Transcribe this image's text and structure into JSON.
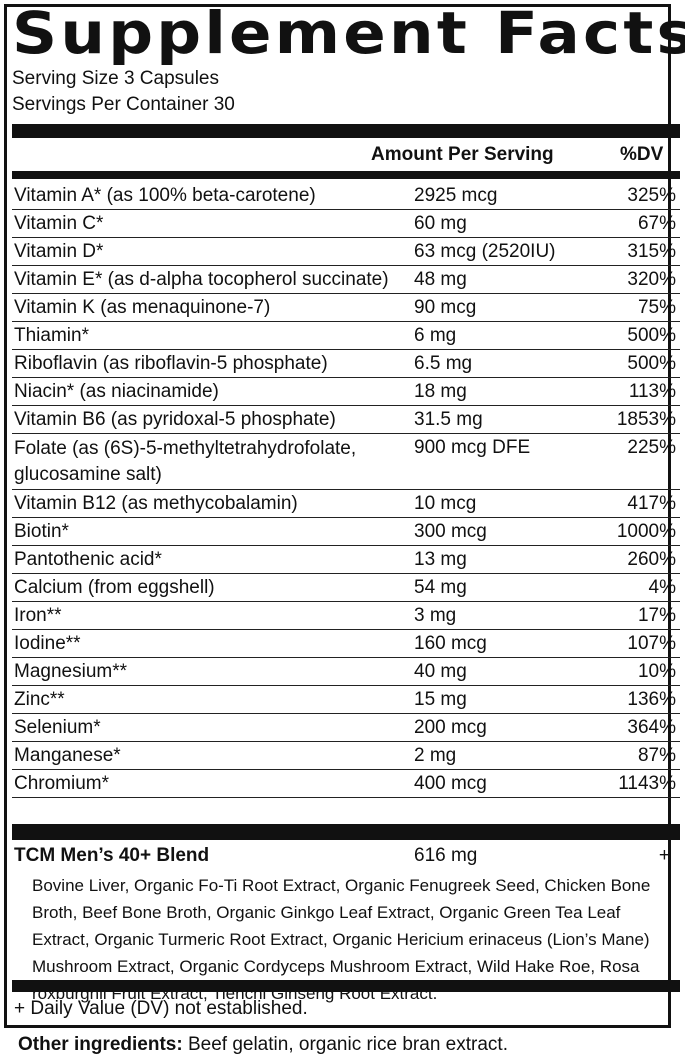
{
  "title": "Supplement Facts",
  "serving_size": "Serving Size 3 Capsules",
  "servings_per_container": "Servings Per Container 30",
  "header": {
    "amount": "Amount Per Serving",
    "dv": "%DV"
  },
  "nutrients": [
    {
      "name": "Vitamin A* (as 100% beta-carotene)",
      "amount": "2925 mcg",
      "dv": "325%"
    },
    {
      "name": "Vitamin C*",
      "amount": "60 mg",
      "dv": "67%"
    },
    {
      "name": "Vitamin D*",
      "amount": "63 mcg (2520IU)",
      "dv": "315%"
    },
    {
      "name": "Vitamin E* (as d-alpha tocopherol succinate)",
      "amount": "48 mg",
      "dv": "320%"
    },
    {
      "name": "Vitamin K (as menaquinone-7)",
      "amount": "90 mcg",
      "dv": "75%"
    },
    {
      "name": "Thiamin*",
      "amount": "6 mg",
      "dv": "500%"
    },
    {
      "name": "Riboflavin (as riboflavin-5 phosphate)",
      "amount": "6.5 mg",
      "dv": "500%"
    },
    {
      "name": "Niacin* (as niacinamide)",
      "amount": "18 mg",
      "dv": "113%"
    },
    {
      "name": "Vitamin B6 (as pyridoxal-5 phosphate)",
      "amount": "31.5 mg",
      "dv": "1853%"
    },
    {
      "name": "Folate (as (6S)-5-methyltetrahydrofolate, glucosamine salt)",
      "amount": "900 mcg DFE",
      "dv": "225%"
    },
    {
      "name": "Vitamin B12 (as methycobalamin)",
      "amount": "10 mcg",
      "dv": "417%"
    },
    {
      "name": "Biotin*",
      "amount": "300 mcg",
      "dv": "1000%"
    },
    {
      "name": "Pantothenic acid*",
      "amount": "13 mg",
      "dv": "260%"
    },
    {
      "name": "Calcium (from eggshell)",
      "amount": "54 mg",
      "dv": "4%"
    },
    {
      "name": "Iron**",
      "amount": "3 mg",
      "dv": "17%"
    },
    {
      "name": "Iodine**",
      "amount": "160 mcg",
      "dv": "107%"
    },
    {
      "name": "Magnesium**",
      "amount": "40 mg",
      "dv": "10%"
    },
    {
      "name": "Zinc**",
      "amount": "15 mg",
      "dv": "136%"
    },
    {
      "name": "Selenium*",
      "amount": "200 mcg",
      "dv": "364%"
    },
    {
      "name": "Manganese*",
      "amount": "2 mg",
      "dv": "87%"
    },
    {
      "name": "Chromium*",
      "amount": "400 mcg",
      "dv": "1143%"
    }
  ],
  "blend": {
    "name": "TCM Men’s 40+ Blend",
    "amount": "616 mg",
    "dv": "+",
    "ingredients": "Bovine Liver, Organic Fo-Ti Root Extract, Organic Fenugreek Seed, Chicken Bone Broth, Beef Bone Broth, Organic Ginkgo Leaf Extract, Organic Green Tea Leaf Extract, Organic Turmeric Root Extract, Organic Hericium erinaceus (Lion’s Mane) Mushroom Extract, Organic Cordyceps Mushroom Extract, Wild Hake Roe, Rosa roxburghii Fruit Extract, Tienchi Ginseng Root Extract."
  },
  "footnote": "+ Daily Value (DV) not established.",
  "other_ingredients": {
    "label": "Other ingredients:",
    "text": " Beef gelatin, organic rice bran extract."
  }
}
